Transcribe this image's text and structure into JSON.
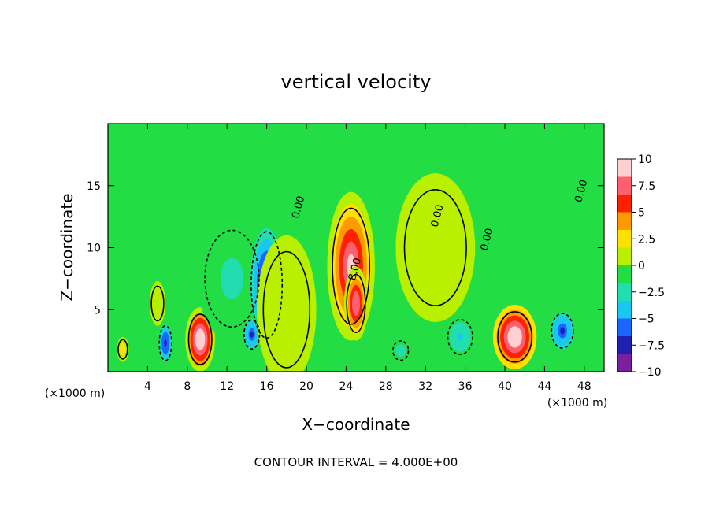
{
  "chart_data": {
    "type": "heatmap",
    "title": "vertical velocity",
    "xlabel": "X−coordinate",
    "ylabel": "Z−coordinate",
    "x_unit_left": "(×1000 m)",
    "x_unit_right": "(×1000 m)",
    "footer": "CONTOUR INTERVAL = 4.000E+00",
    "xlim": [
      0,
      50
    ],
    "ylim": [
      0,
      20
    ],
    "x_ticks": [
      4,
      8,
      12,
      16,
      20,
      24,
      28,
      32,
      36,
      40,
      44,
      48
    ],
    "x_tick_labels": [
      "4",
      "8",
      "12",
      "16",
      "20",
      "24",
      "28",
      "32",
      "36",
      "40",
      "44",
      "48"
    ],
    "y_ticks": [
      5,
      10,
      15
    ],
    "y_tick_labels": [
      "5",
      "10",
      "15"
    ],
    "colorbar": {
      "range": [
        -10,
        10
      ],
      "ticks": [
        10,
        7.5,
        5,
        2.5,
        0,
        -2.5,
        -5,
        -7.5,
        -10
      ],
      "tick_labels": [
        "10",
        "7.5",
        "5",
        "2.5",
        "0",
        "−2.5",
        "−5",
        "−7.5",
        "−10"
      ],
      "colors": [
        "#7a1fa0",
        "#2020b0",
        "#1a66ff",
        "#18c8f0",
        "#22ddb0",
        "#22dd44",
        "#b8f000",
        "#ffe000",
        "#ff9a00",
        "#ff2000",
        "#ff6070",
        "#ffd0d0"
      ]
    },
    "background_value": 0,
    "features": [
      {
        "x": 1.5,
        "z": 1.8,
        "w": 0.6,
        "h": 1.0,
        "value": 3
      },
      {
        "x": 5.8,
        "z": 2.3,
        "w": 0.8,
        "h": 1.8,
        "value": -8
      },
      {
        "x": 5.0,
        "z": 5.5,
        "w": 0.8,
        "h": 1.8,
        "value": 1
      },
      {
        "x": 9.3,
        "z": 2.6,
        "w": 1.5,
        "h": 2.6,
        "value": 10
      },
      {
        "x": 12.5,
        "z": 7.5,
        "w": 3.5,
        "h": 5.0,
        "value": -2.5
      },
      {
        "x": 16.0,
        "z": 7.0,
        "w": 2.0,
        "h": 5.5,
        "value": -8.5
      },
      {
        "x": 14.5,
        "z": 3.0,
        "w": 1.0,
        "h": 1.5,
        "value": -7
      },
      {
        "x": 24.5,
        "z": 8.5,
        "w": 2.4,
        "h": 6.0,
        "value": 9.5
      },
      {
        "x": 25.0,
        "z": 5.5,
        "w": 1.2,
        "h": 3.0,
        "value": 8
      },
      {
        "x": 29.5,
        "z": 1.7,
        "w": 1.0,
        "h": 1.0,
        "value": -3
      },
      {
        "x": 35.5,
        "z": 2.8,
        "w": 1.6,
        "h": 1.8,
        "value": -4
      },
      {
        "x": 41.0,
        "z": 2.8,
        "w": 2.2,
        "h": 2.6,
        "value": 11
      },
      {
        "x": 45.8,
        "z": 3.3,
        "w": 1.4,
        "h": 1.8,
        "value": -7.5
      },
      {
        "x": 18.0,
        "z": 5.0,
        "w": 3.0,
        "h": 6.0,
        "value": 0.8
      },
      {
        "x": 33.0,
        "z": 10.0,
        "w": 4.0,
        "h": 6.0,
        "value": 0.6
      }
    ],
    "contour_labels": [
      {
        "x": 19.5,
        "z": 13.2,
        "text": "0.00"
      },
      {
        "x": 25.2,
        "z": 8.2,
        "text": "8.00"
      },
      {
        "x": 33.5,
        "z": 12.5,
        "text": "0.00"
      },
      {
        "x": 38.5,
        "z": 10.6,
        "text": "0.00"
      },
      {
        "x": 48.0,
        "z": 14.5,
        "text": "0.00"
      }
    ]
  }
}
